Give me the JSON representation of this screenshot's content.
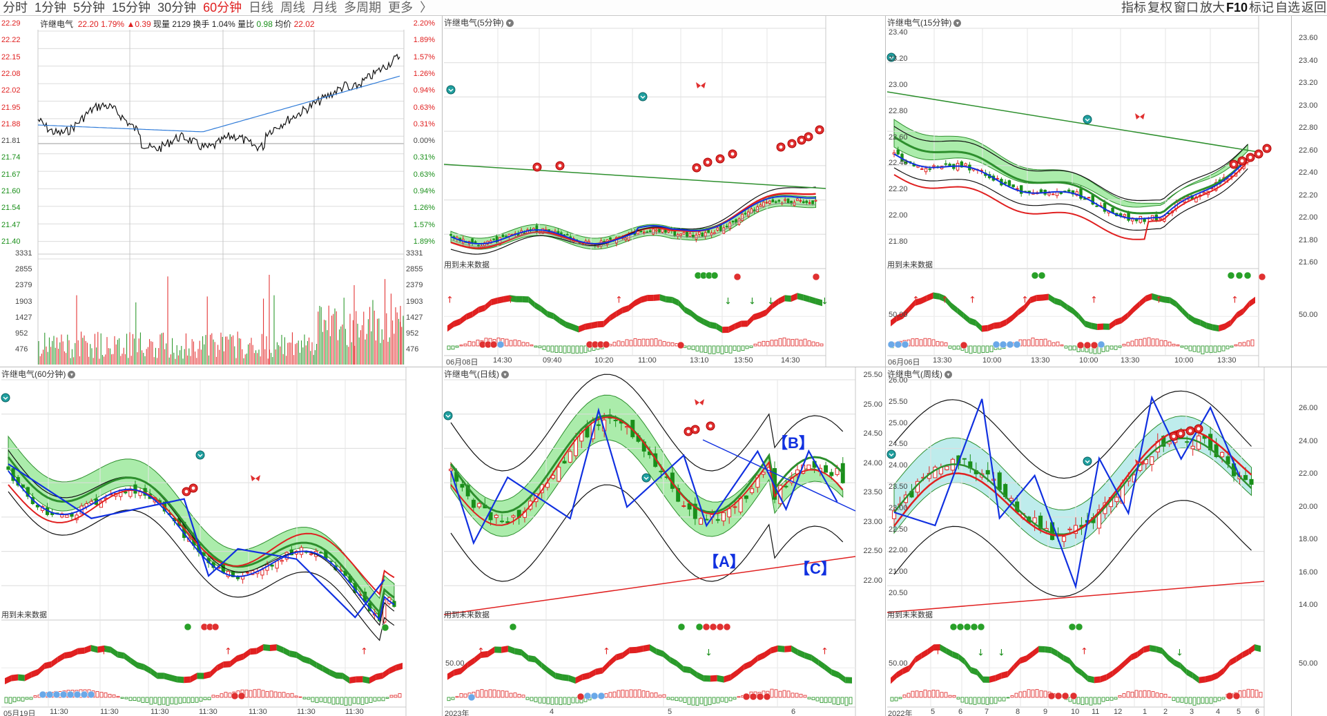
{
  "toolbar": {
    "tabs": [
      "分时",
      "1分钟",
      "5分钟",
      "15分钟",
      "30分钟",
      "60分钟",
      "日线",
      "周线",
      "月线",
      "多周期",
      "更多",
      "〉"
    ],
    "active_tab": "60分钟",
    "right_tools": [
      "指标",
      "复权",
      "窗口",
      "放大",
      "F10",
      "标记",
      "自选",
      "返回"
    ]
  },
  "intraday": {
    "stock_name": "许继电气",
    "price": "22.20",
    "change_pct": "1.79%",
    "change": "▲0.39",
    "volume_label": "现量",
    "volume": "2129",
    "turnover_label": "换手",
    "turnover": "1.04%",
    "ratio_label": "量比",
    "ratio": "0.98",
    "avg_label": "均价",
    "avg": "22.02",
    "left_axis": [
      "22.29",
      "22.22",
      "22.15",
      "22.08",
      "22.02",
      "21.95",
      "21.88",
      "21.81",
      "21.74",
      "21.67",
      "21.60",
      "21.54",
      "21.47",
      "21.40"
    ],
    "right_axis": [
      "2.20%",
      "1.89%",
      "1.57%",
      "1.26%",
      "0.94%",
      "0.63%",
      "0.31%",
      "0.00%",
      "0.31%",
      "0.63%",
      "0.94%",
      "1.26%",
      "1.57%",
      "1.89%"
    ],
    "vol_axis": [
      "3331",
      "2855",
      "2379",
      "1903",
      "1427",
      "952",
      "476"
    ]
  },
  "panels": {
    "p5": {
      "title": "许继电气(5分钟)",
      "note": "用到未来数据",
      "x_labels": [
        "06月08日",
        "14:30",
        "09:40",
        "10:20",
        "11:00",
        "13:10",
        "13:50",
        "14:30"
      ]
    },
    "p15": {
      "title": "许继电气(15分钟)",
      "note": "用到未来数据",
      "y_labels": [
        "23.40",
        "23.20",
        "23.00",
        "22.80",
        "22.60",
        "22.40",
        "22.20",
        "22.00",
        "21.80"
      ],
      "osc_label": "50.00",
      "x_labels": [
        "06月06日",
        "13:30",
        "10:00",
        "13:30",
        "10:00",
        "13:30",
        "10:00",
        "13:30"
      ]
    },
    "pright": {
      "y_labels": [
        "23.60",
        "23.40",
        "23.20",
        "23.00",
        "22.80",
        "22.60",
        "22.40",
        "22.20",
        "22.00",
        "21.80",
        "21.60"
      ],
      "osc_label": "50.00"
    },
    "p60": {
      "title": "许继电气(60分钟)",
      "note": "用到未来数据",
      "x_labels": [
        "05月19日",
        "11:30",
        "11:30",
        "11:30",
        "11:30",
        "11:30",
        "11:30",
        "11:30"
      ]
    },
    "pday": {
      "title": "许继电气(日线)",
      "note": "用到未来数据",
      "y_labels": [
        "25.50",
        "25.00",
        "24.50",
        "24.00",
        "23.50",
        "23.00",
        "22.50",
        "22.00"
      ],
      "osc_label": "50.00",
      "x_labels": [
        "2023年",
        "4",
        "5",
        "6"
      ],
      "marks": [
        "【B】",
        "【A】",
        "【C】"
      ]
    },
    "pweek": {
      "title": "许继电气(周线)",
      "note": "用到未来数据",
      "y_labels": [
        "26.00",
        "25.50",
        "25.00",
        "24.50",
        "24.00",
        "23.50",
        "23.00",
        "22.50",
        "22.00",
        "21.00",
        "20.50"
      ],
      "osc_label": "50.00",
      "x_labels": [
        "2022年",
        "5",
        "6",
        "7",
        "8",
        "9",
        "10",
        "11",
        "12",
        "1",
        "2",
        "3",
        "4",
        "5",
        "6"
      ]
    },
    "pweekright": {
      "y_labels": [
        "26.00",
        "24.00",
        "22.00",
        "20.00",
        "18.00",
        "16.00",
        "14.00"
      ],
      "osc_label": "50.00"
    }
  },
  "colors": {
    "up": "#e02020",
    "down": "#1a8f1a",
    "zigzag": "#1030e0",
    "band_green": "#66dd66",
    "band_cyan": "#88dddd"
  }
}
